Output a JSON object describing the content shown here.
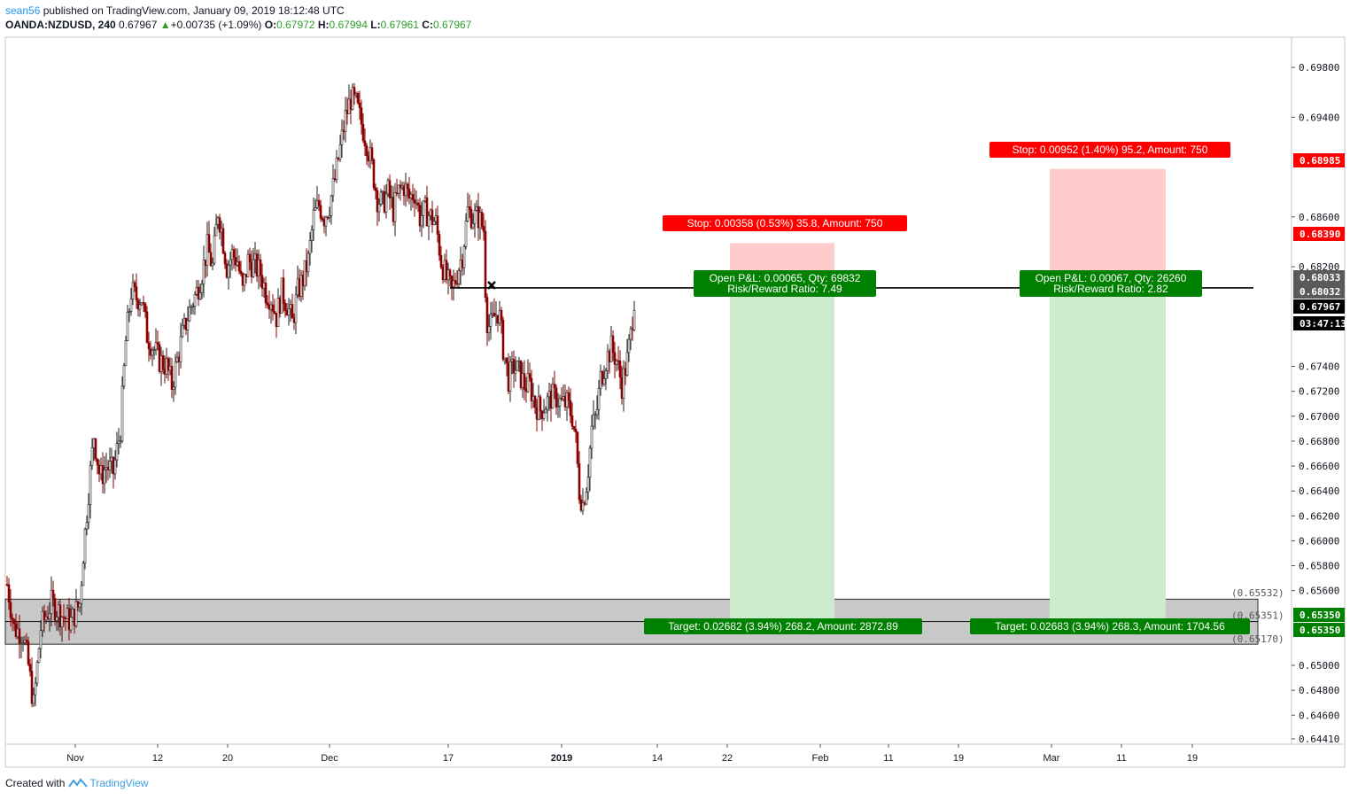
{
  "header": {
    "author": "sean56",
    "published": " published on TradingView.com, January 09, 2019 18:12:48 UTC",
    "symbol": "OANDA:NZDUSD, 240",
    "last": "0.67967",
    "change": "+0.00735 (+1.09%)",
    "o_label": "O:",
    "o_value": "0.67972",
    "h_label": "H:",
    "h_value": "0.67994",
    "l_label": "L:",
    "l_value": "0.67961",
    "c_label": "C:",
    "c_value": "0.67967"
  },
  "footer": {
    "created_with": "Created with",
    "brand": "TradingView"
  },
  "colors": {
    "up": "#26a69a",
    "down": "#8b0000",
    "candle_body": "#ffffff",
    "stop_zone": "#ffcccc",
    "target_zone": "#cdebcd",
    "stop_label": "#ff0000",
    "target_label": "#008000",
    "range_box": "#c8c8c8",
    "accent": "#2196f3"
  },
  "chart_data": {
    "type": "candlestick",
    "instrument": "OANDA:NZDUSD",
    "timeframe": "240",
    "ylim": [
      0.6441,
      0.6995
    ],
    "y_ticks": [
      "0.69800",
      "0.69400",
      "0.68600",
      "0.68200",
      "0.67400",
      "0.67200",
      "0.67000",
      "0.66800",
      "0.66600",
      "0.66400",
      "0.66200",
      "0.66000",
      "0.65800",
      "0.65600",
      "0.65000",
      "0.64800",
      "0.64600",
      "0.64410"
    ],
    "x_ticks": [
      "Nov",
      "12",
      "20",
      "Dec",
      "17",
      "2019",
      "14",
      "22",
      "Feb",
      "11",
      "19",
      "Mar",
      "11",
      "19"
    ],
    "x_ticks_bold": [
      "2019"
    ],
    "price_path": [
      [
        0,
        0.6565
      ],
      [
        8,
        0.653
      ],
      [
        18,
        0.6525
      ],
      [
        24,
        0.65
      ],
      [
        30,
        0.6468
      ],
      [
        38,
        0.653
      ],
      [
        50,
        0.655
      ],
      [
        62,
        0.654
      ],
      [
        72,
        0.6535
      ],
      [
        82,
        0.655
      ],
      [
        86,
        0.659
      ],
      [
        92,
        0.664
      ],
      [
        98,
        0.6685
      ],
      [
        105,
        0.665
      ],
      [
        112,
        0.666
      ],
      [
        120,
        0.6655
      ],
      [
        128,
        0.669
      ],
      [
        134,
        0.676
      ],
      [
        140,
        0.68
      ],
      [
        146,
        0.6795
      ],
      [
        152,
        0.6795
      ],
      [
        158,
        0.6765
      ],
      [
        165,
        0.6755
      ],
      [
        172,
        0.6745
      ],
      [
        180,
        0.674
      ],
      [
        186,
        0.6725
      ],
      [
        192,
        0.6745
      ],
      [
        198,
        0.6765
      ],
      [
        206,
        0.6785
      ],
      [
        214,
        0.68
      ],
      [
        220,
        0.6815
      ],
      [
        226,
        0.6835
      ],
      [
        232,
        0.682
      ],
      [
        238,
        0.6865
      ],
      [
        242,
        0.685
      ],
      [
        248,
        0.682
      ],
      [
        254,
        0.683
      ],
      [
        260,
        0.6825
      ],
      [
        266,
        0.68
      ],
      [
        272,
        0.6825
      ],
      [
        280,
        0.682
      ],
      [
        286,
        0.6815
      ],
      [
        292,
        0.68
      ],
      [
        298,
        0.6795
      ],
      [
        304,
        0.678
      ],
      [
        310,
        0.68
      ],
      [
        316,
        0.679
      ],
      [
        322,
        0.6775
      ],
      [
        328,
        0.68
      ],
      [
        334,
        0.681
      ],
      [
        340,
        0.6825
      ],
      [
        346,
        0.686
      ],
      [
        352,
        0.687
      ],
      [
        358,
        0.686
      ],
      [
        364,
        0.687
      ],
      [
        370,
        0.689
      ],
      [
        376,
        0.6915
      ],
      [
        382,
        0.694
      ],
      [
        388,
        0.6955
      ],
      [
        394,
        0.695
      ],
      [
        400,
        0.6935
      ],
      [
        406,
        0.692
      ],
      [
        412,
        0.69
      ],
      [
        418,
        0.6875
      ],
      [
        424,
        0.687
      ],
      [
        430,
        0.688
      ],
      [
        436,
        0.6865
      ],
      [
        442,
        0.688
      ],
      [
        448,
        0.6885
      ],
      [
        454,
        0.6875
      ],
      [
        460,
        0.688
      ],
      [
        466,
        0.686
      ],
      [
        472,
        0.6865
      ],
      [
        478,
        0.686
      ],
      [
        484,
        0.6855
      ],
      [
        490,
        0.6825
      ],
      [
        496,
        0.681
      ],
      [
        502,
        0.68
      ],
      [
        508,
        0.6815
      ],
      [
        514,
        0.683
      ],
      [
        520,
        0.6865
      ],
      [
        526,
        0.686
      ],
      [
        532,
        0.686
      ],
      [
        538,
        0.685
      ],
      [
        541,
        0.678
      ],
      [
        545,
        0.677
      ],
      [
        550,
        0.678
      ],
      [
        555,
        0.6785
      ],
      [
        560,
        0.6755
      ],
      [
        566,
        0.673
      ],
      [
        572,
        0.674
      ],
      [
        578,
        0.6735
      ],
      [
        584,
        0.6725
      ],
      [
        590,
        0.6725
      ],
      [
        596,
        0.671
      ],
      [
        602,
        0.6705
      ],
      [
        608,
        0.671
      ],
      [
        614,
        0.6715
      ],
      [
        620,
        0.6715
      ],
      [
        626,
        0.671
      ],
      [
        632,
        0.671
      ],
      [
        638,
        0.67
      ],
      [
        642,
        0.668
      ],
      [
        646,
        0.664
      ],
      [
        650,
        0.663
      ],
      [
        655,
        0.665
      ],
      [
        660,
        0.669
      ],
      [
        665,
        0.67
      ],
      [
        670,
        0.673
      ],
      [
        676,
        0.6745
      ],
      [
        682,
        0.6755
      ],
      [
        688,
        0.6745
      ],
      [
        694,
        0.6725
      ],
      [
        700,
        0.6745
      ],
      [
        704,
        0.6765
      ],
      [
        708,
        0.6795
      ]
    ],
    "horizontal_line": {
      "price": 0.6803
    },
    "zones": [
      {
        "name": "upper_range",
        "top": 0.65532,
        "bottom": 0.65351,
        "label": "(0.65532)"
      },
      {
        "name": "lower_range",
        "top": 0.65351,
        "bottom": 0.6517,
        "label": "(0.65351)",
        "label2": "(0.65170)"
      }
    ],
    "positions": [
      {
        "entry": 0.6803,
        "stop": 0.6839,
        "target": 0.6535,
        "stop_label": "Stop: 0.00358 (0.53%) 35.8, Amount: 750",
        "pl_label": "Open P&L: 0.00065, Qty: 69832",
        "rr_label": "Risk/Reward Ratio: 7.49",
        "target_label": "Target: 0.02682 (3.94%) 268.2, Amount: 2872.89"
      },
      {
        "entry": 0.6803,
        "stop": 0.68985,
        "target": 0.6535,
        "stop_label": "Stop: 0.00952 (1.40%) 95.2, Amount: 750",
        "pl_label": "Open P&L: 0.00067, Qty: 26260",
        "rr_label": "Risk/Reward Ratio: 2.82",
        "target_label": "Target: 0.02683 (3.94%) 268.3, Amount: 1704.56"
      }
    ],
    "axis_labels": [
      {
        "text": "0.68985",
        "color": "#ff0000"
      },
      {
        "text": "0.68390",
        "color": "#ff0000"
      },
      {
        "text": "0.68033",
        "color": "#5a5a5a"
      },
      {
        "text": "0.68032",
        "color": "#5a5a5a"
      },
      {
        "text": "0.67967",
        "color": "#000000"
      },
      {
        "text": "03:47:13",
        "color": "#000000"
      },
      {
        "text": "0.65350",
        "color": "#008000"
      },
      {
        "text": "0.65350",
        "color": "#008000"
      }
    ]
  }
}
